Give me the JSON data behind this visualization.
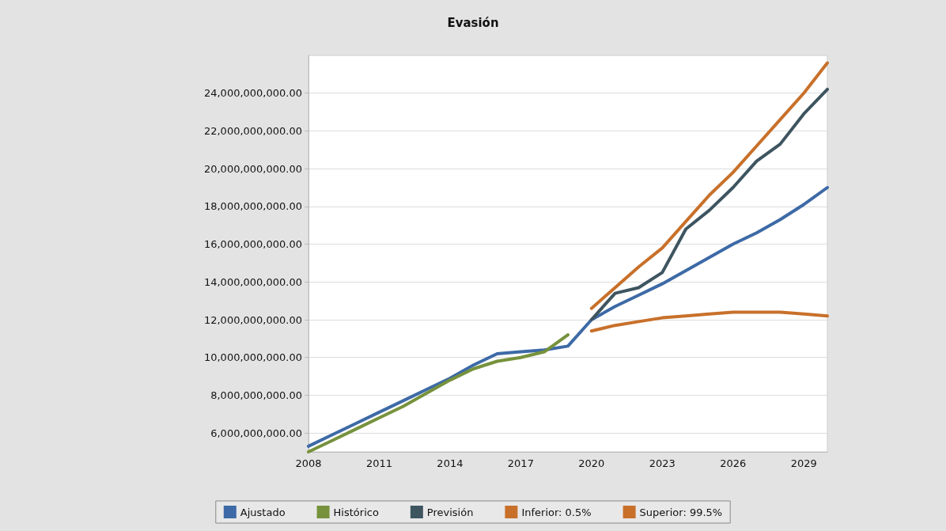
{
  "chart_data": {
    "type": "line",
    "title": "Evasión",
    "categories": [
      "2008",
      null,
      null,
      "2011",
      null,
      null,
      "2014",
      null,
      null,
      "2017",
      null,
      null,
      "2020",
      null,
      null,
      "2023",
      null,
      null,
      "2026",
      null,
      null,
      "2029",
      null
    ],
    "ylim": [
      5000000000,
      26000000000
    ],
    "yticks": [
      {
        "value": 6000000000,
        "label": "6,000,000,000.00"
      },
      {
        "value": 8000000000,
        "label": "8,000,000,000.00"
      },
      {
        "value": 10000000000,
        "label": "10,000,000,000.00"
      },
      {
        "value": 12000000000,
        "label": "12,000,000,000.00"
      },
      {
        "value": 14000000000,
        "label": "14,000,000,000.00"
      },
      {
        "value": 16000000000,
        "label": "16,000,000,000.00"
      },
      {
        "value": 18000000000,
        "label": "18,000,000,000.00"
      },
      {
        "value": 20000000000,
        "label": "20,000,000,000.00"
      },
      {
        "value": 22000000000,
        "label": "22,000,000,000.00"
      },
      {
        "value": 24000000000,
        "label": "24,000,000,000.00"
      }
    ],
    "grid": "y",
    "legend": "bottom",
    "marker": "none",
    "line_style": "solid",
    "series": [
      {
        "name": "Ajustado",
        "color": "#3d6aa6",
        "values": [
          5300000000,
          5900000000,
          6500000000,
          7100000000,
          7700000000,
          8300000000,
          8900000000,
          9600000000,
          10200000000,
          10300000000,
          10400000000,
          10600000000,
          12000000000,
          12700000000,
          13300000000,
          13900000000,
          14600000000,
          15300000000,
          16000000000,
          16600000000,
          17300000000,
          18100000000,
          19000000000
        ]
      },
      {
        "name": "Histórico",
        "color": "#76923c",
        "values": [
          5000000000,
          5600000000,
          6200000000,
          6800000000,
          7400000000,
          8100000000,
          8800000000,
          9400000000,
          9800000000,
          10000000000,
          10300000000,
          11200000000,
          null,
          null,
          null,
          null,
          null,
          null,
          null,
          null,
          null,
          null,
          null
        ]
      },
      {
        "name": "Previsión",
        "color": "#3e5560",
        "values": [
          null,
          null,
          null,
          null,
          null,
          null,
          null,
          null,
          null,
          null,
          null,
          null,
          12000000000,
          13400000000,
          13700000000,
          14500000000,
          16800000000,
          17800000000,
          19000000000,
          20400000000,
          21300000000,
          22900000000,
          24200000000
        ]
      },
      {
        "name": "Inferior: 0.5%",
        "color": "#c8702a",
        "values": [
          null,
          null,
          null,
          null,
          null,
          null,
          null,
          null,
          null,
          null,
          null,
          null,
          11400000000,
          11700000000,
          11900000000,
          12100000000,
          12200000000,
          12300000000,
          12400000000,
          12400000000,
          12400000000,
          12300000000,
          12200000000
        ]
      },
      {
        "name": "Superior: 99.5%",
        "color": "#c8702a",
        "values": [
          null,
          null,
          null,
          null,
          null,
          null,
          null,
          null,
          null,
          null,
          null,
          null,
          12600000000,
          13700000000,
          14800000000,
          15800000000,
          17200000000,
          18600000000,
          19800000000,
          21200000000,
          22600000000,
          24000000000,
          25600000000
        ]
      }
    ]
  }
}
